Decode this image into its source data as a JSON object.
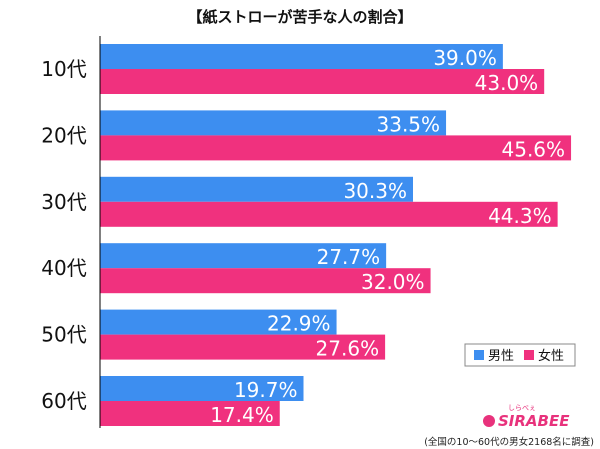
{
  "chart_data": {
    "type": "bar",
    "orientation": "horizontal",
    "title": "【紙ストローが苦手な人の割合】",
    "categories": [
      "10代",
      "20代",
      "30代",
      "40代",
      "50代",
      "60代"
    ],
    "series": [
      {
        "name": "男性",
        "color": "#3d8ef0",
        "values": [
          39.0,
          33.5,
          30.3,
          27.7,
          22.9,
          19.7
        ]
      },
      {
        "name": "女性",
        "color": "#f0317e",
        "values": [
          43.0,
          45.6,
          44.3,
          32.0,
          27.6,
          17.4
        ]
      }
    ],
    "value_format": "%",
    "xlim": [
      0,
      50
    ],
    "grid": false,
    "legend_position": "bottom-right"
  },
  "brand": {
    "logo_text": "SIRABEE",
    "logo_subtext": "しらべぇ",
    "logo_color": "#e8327c"
  },
  "footnote": "(全国の10〜60代の男女2168名に調査)"
}
